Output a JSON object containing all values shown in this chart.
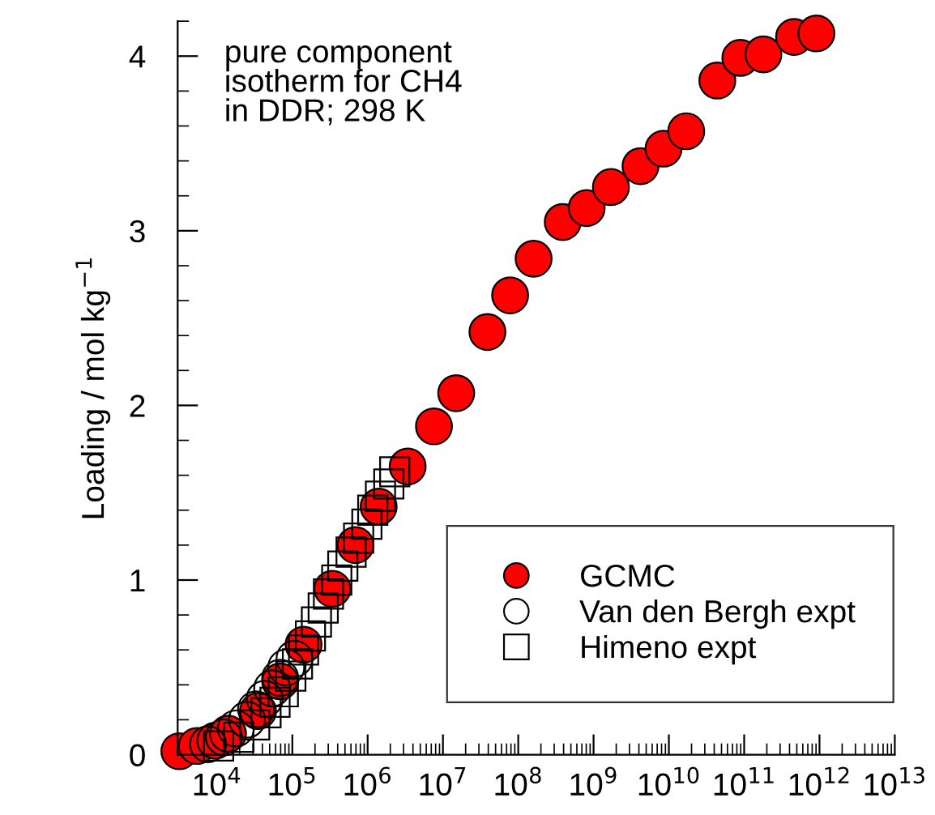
{
  "chart_data": {
    "type": "scatter",
    "ylabel": "Loading / mol kg$^{−1}$",
    "annotations": [
      "pure component\nisotherm for CH4\nin DDR; 298 K"
    ],
    "log": "x",
    "xlim": [
      3000,
      10000000000000.0
    ],
    "xticks": [
      {
        "value": 10000.0,
        "label": "10$^{4}$"
      },
      {
        "value": 100000.0,
        "label": "10$^{5}$"
      },
      {
        "value": 1000000.0,
        "label": "10$^{6}$"
      },
      {
        "value": 10000000.0,
        "label": "10$^{7}$"
      },
      {
        "value": 100000000.0,
        "label": "10$^{8}$"
      },
      {
        "value": 1000000000.0,
        "label": "10$^{9}$"
      },
      {
        "value": 10000000000.0,
        "label": "10$^{10}$"
      },
      {
        "value": 100000000000.0,
        "label": "10$^{11}$"
      },
      {
        "value": 1000000000000.0,
        "label": "10$^{12}$"
      },
      {
        "value": 10000000000000.0,
        "label": "10$^{13}$"
      }
    ],
    "ylim": [
      0,
      4.2
    ],
    "yticks": [
      0,
      1,
      2,
      3,
      4
    ],
    "legend": "bottom right",
    "grid": false,
    "series": [
      {
        "name": "GCMC",
        "color": "#ff0000",
        "marker": "circle",
        "x": [
          3160,
          5400,
          9500,
          14000,
          35000,
          69000,
          141000,
          340000,
          690000,
          1400000,
          3400000,
          7600000,
          15000000,
          39000000,
          78000000,
          160000000,
          390000000,
          810000000,
          1700000000,
          4200000000,
          8500000000,
          17000000000,
          44000000000,
          89000000000,
          180000000000,
          460000000000,
          910000000000
        ],
        "values": [
          0.02,
          0.05,
          0.08,
          0.12,
          0.25,
          0.42,
          0.63,
          0.95,
          1.2,
          1.42,
          1.65,
          1.88,
          2.07,
          2.42,
          2.63,
          2.84,
          3.05,
          3.13,
          3.25,
          3.37,
          3.47,
          3.57,
          3.86,
          3.99,
          4.01,
          4.11,
          4.13
        ]
      },
      {
        "name": "Van den Bergh expt",
        "color": "#000000",
        "marker": "circle",
        "x": [
          7600,
          12300,
          17800,
          25000,
          33000,
          43000,
          54000,
          69000,
          83000,
          107000
        ],
        "values": [
          0.06,
          0.1,
          0.15,
          0.2,
          0.26,
          0.32,
          0.38,
          0.44,
          0.5,
          0.55
        ]
      },
      {
        "name": "Himeno expt",
        "color": "#000000",
        "marker": "square",
        "x": [
          10500,
          19500,
          31600,
          44700,
          58900,
          75900,
          95500,
          117000,
          141000,
          174000,
          209000,
          257000,
          302000,
          389000,
          468000,
          603000,
          759000,
          977000,
          1170000,
          1480000,
          1910000,
          2290000
        ],
        "values": [
          0.05,
          0.1,
          0.17,
          0.24,
          0.3,
          0.36,
          0.45,
          0.52,
          0.6,
          0.68,
          0.76,
          0.84,
          0.92,
          1.0,
          1.08,
          1.16,
          1.24,
          1.32,
          1.4,
          1.48,
          1.55,
          1.62
        ]
      }
    ]
  }
}
